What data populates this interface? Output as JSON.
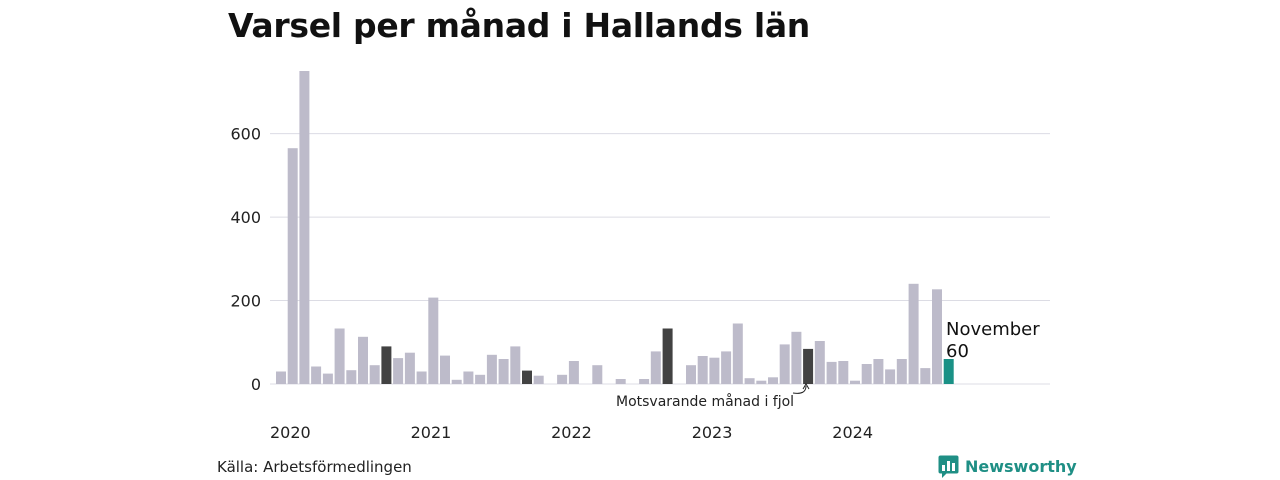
{
  "title": "Varsel per månad i Hallands län",
  "source": "Källa: Arbetsförmedlingen",
  "brand": {
    "name": "Newsworthy",
    "icon": "newsworthy-logo-icon"
  },
  "colors": {
    "bar": "#bdbbca",
    "highlight": "#424242",
    "current": "#1a9186",
    "grid": "#dcdce4",
    "brand": "#1f8f85"
  },
  "chart_data": {
    "type": "bar",
    "title": "Varsel per månad i Hallands län",
    "xlabel": "",
    "ylabel": "",
    "ylim": [
      0,
      750
    ],
    "yticks": [
      0,
      200,
      400,
      600
    ],
    "grid": true,
    "x_tick_labels": [
      "2020",
      "2021",
      "2022",
      "2023",
      "2024"
    ],
    "values": [
      30,
      565,
      750,
      42,
      25,
      133,
      33,
      113,
      45,
      90,
      62,
      75,
      30,
      207,
      68,
      10,
      30,
      22,
      70,
      60,
      90,
      32,
      20,
      0,
      22,
      55,
      0,
      45,
      0,
      12,
      0,
      12,
      78,
      133,
      0,
      45,
      67,
      63,
      78,
      145,
      14,
      8,
      16,
      95,
      125,
      84,
      103,
      53,
      55,
      8,
      48,
      60,
      35,
      60,
      240,
      38,
      227,
      60
    ],
    "highlight_indices": [
      9,
      21,
      33,
      45
    ],
    "current_index": 57,
    "current_label": {
      "month": "November",
      "value": "60"
    },
    "annotation": "Motsvarande månad i fjol"
  }
}
